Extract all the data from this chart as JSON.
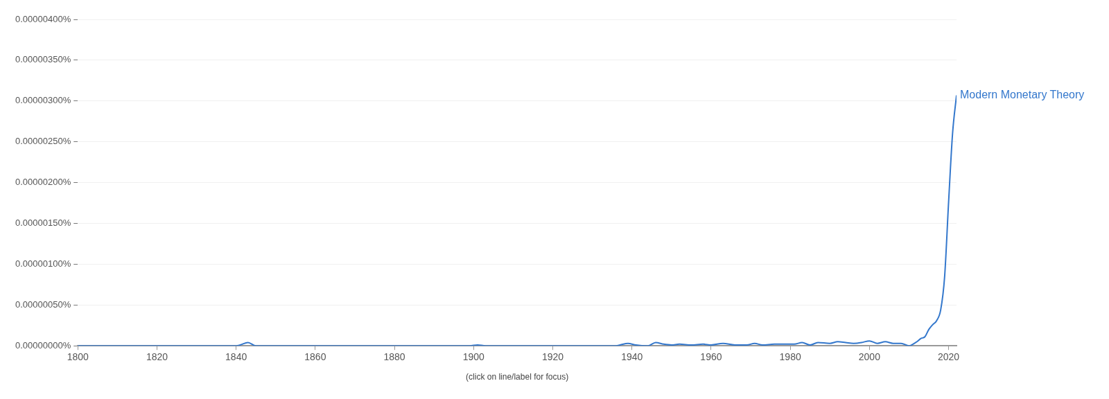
{
  "chart_data": {
    "type": "line",
    "x": [
      1800,
      1840,
      1841,
      1843,
      1845,
      1899,
      1901,
      1903,
      1936,
      1937,
      1939,
      1941,
      1944,
      1946,
      1948,
      1950,
      1952,
      1955,
      1958,
      1960,
      1963,
      1966,
      1969,
      1971,
      1973,
      1976,
      1979,
      1981,
      1983,
      1985,
      1987,
      1990,
      1992,
      1994,
      1996,
      1998,
      2000,
      2002,
      2004,
      2006,
      2008,
      2010,
      2011,
      2012,
      2013,
      2014,
      2015,
      2016,
      2017,
      2018,
      2019,
      2020,
      2021,
      2022
    ],
    "series": [
      {
        "name": "Modern Monetary Theory",
        "color": "#3377cc",
        "values": [
          0,
          0,
          1e-08,
          4e-08,
          0,
          0,
          1e-08,
          0,
          0,
          1e-08,
          3e-08,
          1e-08,
          0,
          4e-08,
          2e-08,
          1e-08,
          2e-08,
          1e-08,
          2e-08,
          1e-08,
          3e-08,
          1e-08,
          1e-08,
          3e-08,
          1e-08,
          2e-08,
          2e-08,
          2e-08,
          4e-08,
          1e-08,
          4e-08,
          3e-08,
          5e-08,
          4e-08,
          3e-08,
          4e-08,
          6e-08,
          3e-08,
          5e-08,
          3e-08,
          3e-08,
          0,
          2e-08,
          5e-08,
          9e-08,
          1.1e-07,
          2e-07,
          2.6e-07,
          3.1e-07,
          4.4e-07,
          8.5e-07,
          1.76e-06,
          2.6e-06,
          3.07e-06
        ]
      }
    ],
    "xlim": [
      1800,
      2022
    ],
    "xticks": [
      1800,
      1820,
      1840,
      1860,
      1880,
      1900,
      1920,
      1940,
      1960,
      1980,
      2000,
      2020
    ],
    "ylim": [
      0,
      4e-06
    ],
    "yticks": [
      {
        "value": 0,
        "label": "0.00000000%"
      },
      {
        "value": 5e-07,
        "label": "0.00000050%"
      },
      {
        "value": 1e-06,
        "label": "0.00000100%"
      },
      {
        "value": 1.5e-06,
        "label": "0.00000150%"
      },
      {
        "value": 2e-06,
        "label": "0.00000200%"
      },
      {
        "value": 2.5e-06,
        "label": "0.00000250%"
      },
      {
        "value": 3e-06,
        "label": "0.00000300%"
      },
      {
        "value": 3.5e-06,
        "label": "0.00000350%"
      },
      {
        "value": 4e-06,
        "label": "0.00000400%"
      }
    ],
    "grid": "y",
    "legend": false,
    "marker": "none",
    "line_style": "solid",
    "annotations": [
      "(click on line/label for focus)"
    ]
  }
}
